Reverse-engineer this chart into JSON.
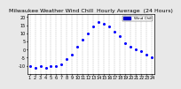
{
  "title": "Milwaukee Weather Wind Chill  Hourly Average  (24 Hours)",
  "hours": [
    1,
    2,
    3,
    4,
    5,
    6,
    7,
    8,
    9,
    10,
    11,
    12,
    13,
    14,
    15,
    16,
    17,
    18,
    19,
    20,
    21,
    22,
    23,
    24
  ],
  "wind_chill": [
    -10,
    -11,
    -10,
    -11,
    -10,
    -10,
    -9,
    -6,
    -3,
    2,
    6,
    10,
    14,
    17,
    16,
    14,
    11,
    8,
    4,
    2,
    0,
    -1,
    -3,
    -5
  ],
  "dot_color": "#0000ff",
  "legend_label": "Wind Chill",
  "legend_box_color": "#0000cc",
  "bg_color": "#ffffff",
  "grid_color": "#aaaaaa",
  "ylim": [
    -15,
    22
  ],
  "yticks": [
    -10,
    -5,
    0,
    5,
    10,
    15,
    20
  ],
  "title_fontsize": 4.5,
  "tick_fontsize": 3.5,
  "figure_bg": "#e8e8e8"
}
